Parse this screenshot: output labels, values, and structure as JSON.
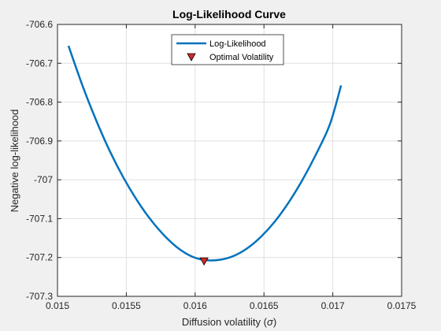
{
  "chart_data": {
    "type": "line",
    "title": "Log-Likelihood Curve",
    "xlabel_text": "Diffusion volatility (",
    "xlabel_symbol": "σ",
    "xlabel_close": ")",
    "ylabel": "Negative log-likelihood",
    "xlim": [
      0.015,
      0.0175
    ],
    "ylim": [
      -707.3,
      -706.6
    ],
    "xticks": [
      0.015,
      0.0155,
      0.016,
      0.0165,
      0.017,
      0.0175
    ],
    "xtick_labels": [
      "0.015",
      "0.0155",
      "0.016",
      "0.0165",
      "0.017",
      "0.0175"
    ],
    "yticks": [
      -707.3,
      -707.2,
      -707.1,
      -707,
      -706.9,
      -706.8,
      -706.7,
      -706.6
    ],
    "ytick_labels": [
      "-707.3",
      "-707.2",
      "-707.1",
      "-707",
      "-706.9",
      "-706.8",
      "-706.7",
      "-706.6"
    ],
    "grid": true,
    "legend_placement": "top-center",
    "series": [
      {
        "name": "Log-Likelihood",
        "color": "#0072BD",
        "x": [
          0.01508,
          0.01518,
          0.01528,
          0.01538,
          0.01548,
          0.01558,
          0.01568,
          0.01578,
          0.01588,
          0.01598,
          0.01608,
          0.01618,
          0.01628,
          0.01638,
          0.01648,
          0.01658,
          0.01668,
          0.01678,
          0.01688,
          0.01698,
          0.01706
        ],
        "y": [
          -706.655,
          -706.756,
          -706.846,
          -706.926,
          -706.995,
          -707.054,
          -707.104,
          -707.145,
          -707.177,
          -707.198,
          -707.207,
          -707.206,
          -707.196,
          -707.176,
          -707.146,
          -707.107,
          -707.058,
          -707.0,
          -706.933,
          -706.856,
          -706.757
        ]
      }
    ],
    "optimal_point": {
      "name": "Optimal Volatility",
      "x": 0.016065,
      "y": -707.209,
      "color": "#D62728"
    }
  }
}
